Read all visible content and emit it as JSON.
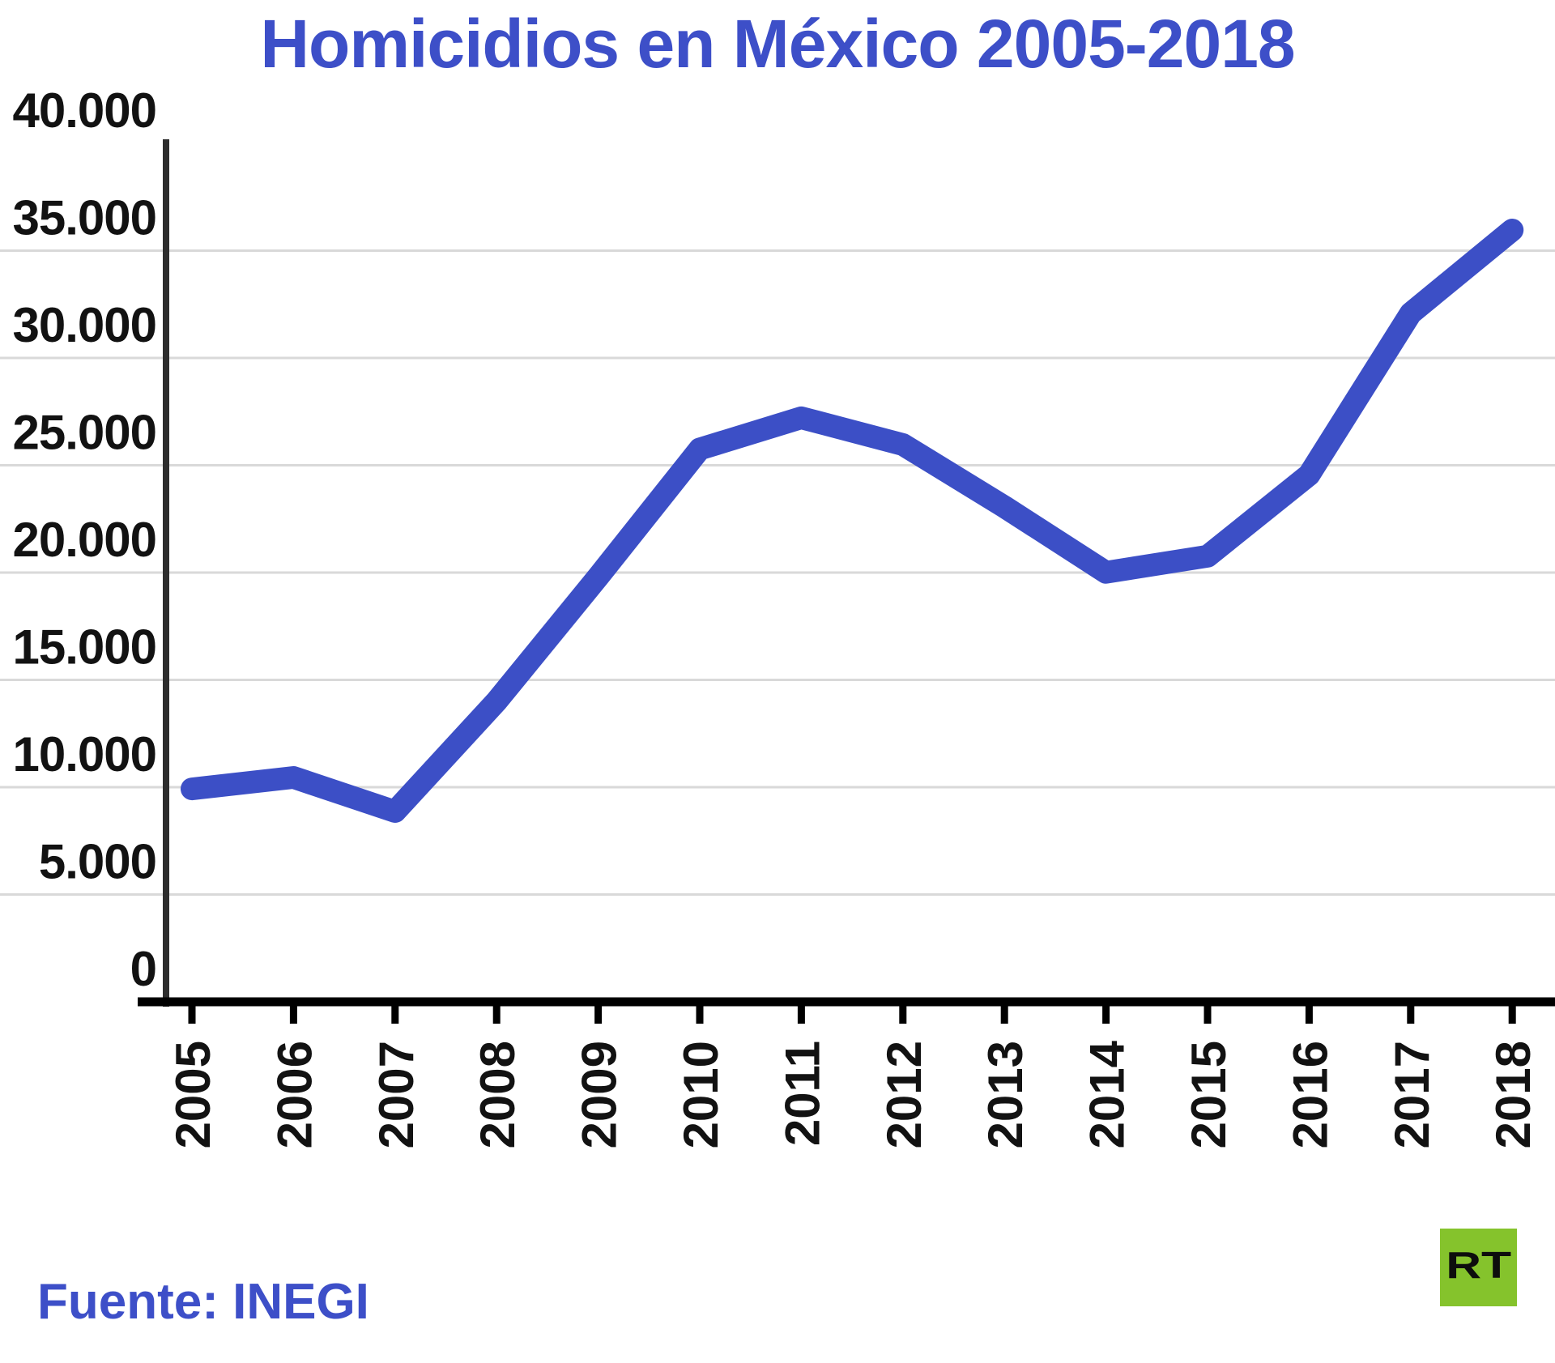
{
  "title": "Homicidios en México 2005-2018",
  "footer": {
    "source": "Fuente: INEGI",
    "logo_text": "RT"
  },
  "colors": {
    "accent_blue": "#3d4fc8",
    "line_blue": "#3c4fc6",
    "gridline_gray": "#d9d9d9",
    "y_axis_dark": "#2d2d2d",
    "x_axis_black": "#000000",
    "label_black": "#121212",
    "logo_green": "#85c32c",
    "logo_text_black": "#0d0d0d"
  },
  "y_axis": {
    "tick_labels": [
      "40.000",
      "35.000",
      "30.000",
      "25.000",
      "20.000",
      "15.000",
      "10.000",
      "5.000",
      "0"
    ],
    "tick_values": [
      40000,
      35000,
      30000,
      25000,
      20000,
      15000,
      10000,
      5000,
      0
    ],
    "gridline_values": [
      35000,
      30000,
      25000,
      20000,
      15000,
      10000,
      5000
    ]
  },
  "chart_data": {
    "type": "line",
    "title": "Homicidios en México 2005-2018",
    "series_name": "Homicidios",
    "categories": [
      "2005",
      "2006",
      "2007",
      "2008",
      "2009",
      "2010",
      "2011",
      "2012",
      "2013",
      "2014",
      "2015",
      "2016",
      "2017",
      "2018"
    ],
    "values": [
      9921,
      10452,
      8867,
      14006,
      19803,
      25757,
      27213,
      25967,
      23063,
      20010,
      20762,
      24559,
      32079,
      35964
    ],
    "xlabel": "",
    "ylabel": "",
    "ylim": [
      0,
      40000
    ],
    "grid": "horizontal-only",
    "legend": "none",
    "source": "Fuente: INEGI"
  }
}
